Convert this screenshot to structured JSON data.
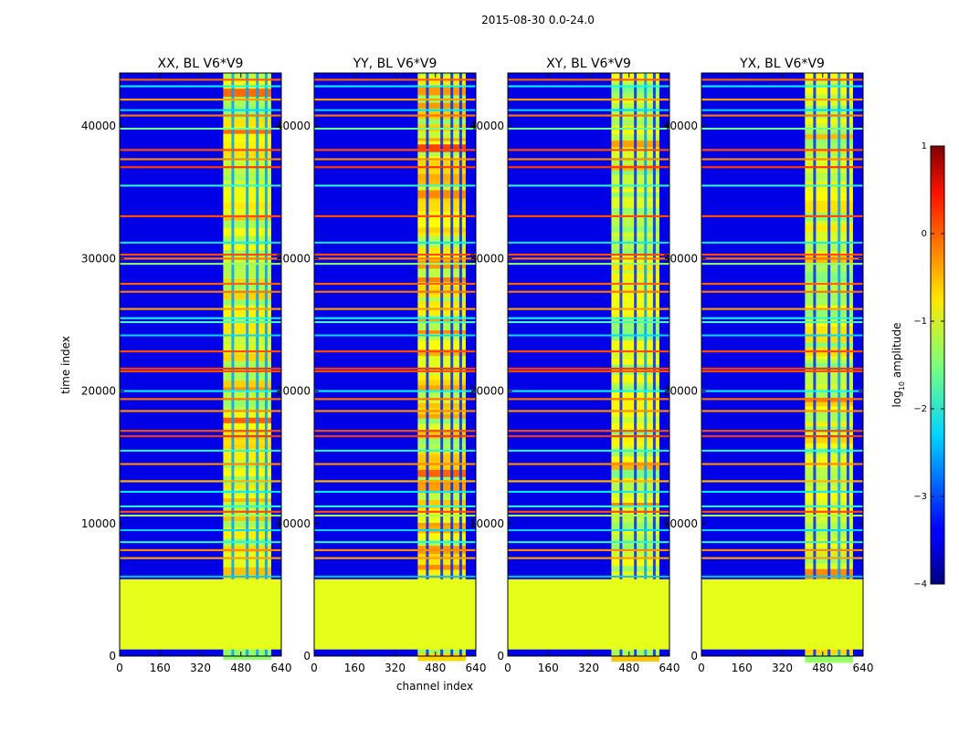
{
  "chart_data": {
    "type": "heatmap",
    "title": "2015-08-30 0.0-24.0",
    "xlabel": "channel index",
    "ylabel": "time index",
    "xlim": [
      0,
      640
    ],
    "ylim": [
      0,
      44000
    ],
    "xticks": [
      0,
      160,
      320,
      480,
      640
    ],
    "yticks": [
      0,
      10000,
      20000,
      30000,
      40000
    ],
    "panels": [
      {
        "name": "XX, BL V6*V9",
        "band_rel": 0.82,
        "gaps_on": [
          0,
          0,
          0,
          0
        ]
      },
      {
        "name": "YY, BL V6*V9",
        "band_rel": 1.0,
        "gaps_on": [
          1,
          1,
          1,
          1
        ]
      },
      {
        "name": "XY, BL V6*V9",
        "band_rel": 0.7,
        "gaps_on": [
          1,
          1,
          0,
          1
        ]
      },
      {
        "name": "YX, BL V6*V9",
        "band_rel": 0.75,
        "gaps_on": [
          1,
          1,
          0,
          1
        ]
      }
    ],
    "structure": {
      "flagged_time_range": [
        500,
        5800
      ],
      "flagged_log_value": -1.0,
      "background_log_value": -3.5,
      "rfi_channel_range": [
        410,
        600
      ],
      "rfi_band_gap_channels": [
        448,
        505,
        545,
        580
      ],
      "rfi_log_range": [
        -1.8,
        -0.3
      ],
      "bright_time_lines": [
        {
          "t": 43500,
          "v": -0.1
        },
        {
          "t": 42000,
          "v": -0.4
        },
        {
          "t": 40800,
          "v": -0.2
        },
        {
          "t": 38200,
          "v": 0.0
        },
        {
          "t": 37500,
          "v": -0.3
        },
        {
          "t": 36900,
          "v": 0.1
        },
        {
          "t": 33200,
          "v": 0.0
        },
        {
          "t": 30300,
          "v": 0.0
        },
        {
          "t": 30000,
          "v": -0.2
        },
        {
          "t": 28100,
          "v": -0.1
        },
        {
          "t": 27500,
          "v": -0.2
        },
        {
          "t": 26200,
          "v": -0.4
        },
        {
          "t": 23000,
          "v": 0.0
        },
        {
          "t": 21700,
          "v": 0.1
        },
        {
          "t": 21500,
          "v": 0.0
        },
        {
          "t": 19400,
          "v": -0.2
        },
        {
          "t": 18500,
          "v": -0.3
        },
        {
          "t": 17000,
          "v": 0.0
        },
        {
          "t": 16600,
          "v": 0.1
        },
        {
          "t": 14500,
          "v": -0.3
        },
        {
          "t": 13200,
          "v": -0.5
        },
        {
          "t": 10900,
          "v": 0.0
        },
        {
          "t": 8000,
          "v": -0.3
        },
        {
          "t": 7400,
          "v": -0.4
        }
      ],
      "cyan_time_lines": [
        {
          "t": 43000,
          "v": -2.1
        },
        {
          "t": 41200,
          "v": -2.3
        },
        {
          "t": 39800,
          "v": -1.6
        },
        {
          "t": 35500,
          "v": -1.9
        },
        {
          "t": 31200,
          "v": -2.2
        },
        {
          "t": 29600,
          "v": -1.4
        },
        {
          "t": 25500,
          "v": -2.0
        },
        {
          "t": 25200,
          "v": -1.8
        },
        {
          "t": 24200,
          "v": -2.3
        },
        {
          "t": 20000,
          "v": -2.1
        },
        {
          "t": 15500,
          "v": -2.0
        },
        {
          "t": 12400,
          "v": -2.2
        },
        {
          "t": 11300,
          "v": -1.9
        },
        {
          "t": 10600,
          "v": -1.3
        },
        {
          "t": 9500,
          "v": -2.3
        },
        {
          "t": 8600,
          "v": -2.0
        },
        {
          "t": 6000,
          "v": -2.4
        }
      ]
    },
    "colorbar": {
      "label": "log",
      "label_sub": "10",
      "label_rest": " amplitude",
      "colormap": "jet",
      "vmin": -4,
      "vmax": 1,
      "ticks": [
        1,
        0,
        -1,
        -2,
        -3,
        -4
      ],
      "tick_labels": [
        "1",
        "0",
        "−1",
        "−2",
        "−3",
        "−4"
      ]
    }
  }
}
